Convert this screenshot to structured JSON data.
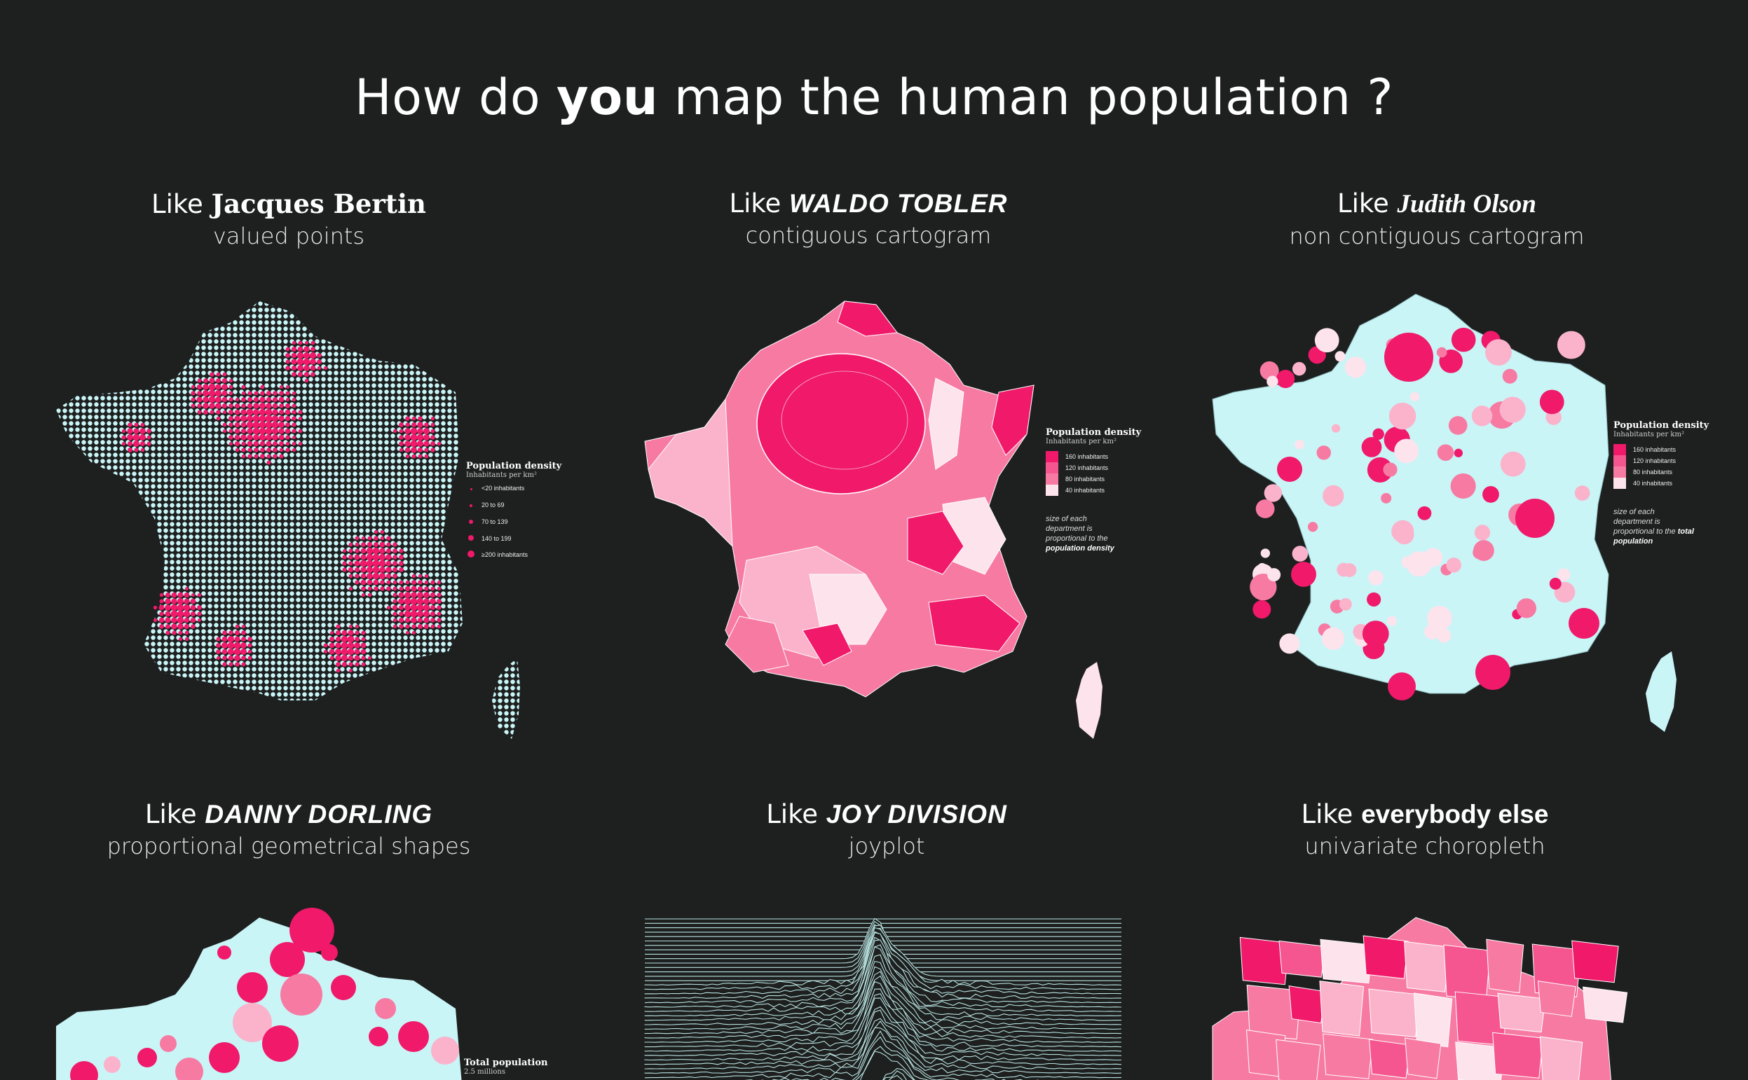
{
  "title": {
    "pre": "How do ",
    "emph": "you",
    "post": " map the human population ?"
  },
  "panels": [
    {
      "like": "Like ",
      "who": "Jacques Bertin",
      "sub": "valued points"
    },
    {
      "like": "Like ",
      "who": "Waldo Tobler",
      "sub": "contiguous cartogram"
    },
    {
      "like": "Like ",
      "who": "Judith Olson",
      "sub": "non contiguous cartogram"
    },
    {
      "like": "Like ",
      "who": "Danny Dorling",
      "sub": "proportional geometrical shapes"
    },
    {
      "like": "Like ",
      "who": "Joy Division",
      "sub": "joyplot"
    },
    {
      "like": "Like ",
      "who": "everybody else",
      "sub": "univariate choropleth"
    }
  ],
  "legend_points": {
    "title": "Population density",
    "subtitle": "Inhabitants per km²",
    "items": [
      "<20 inhabitants",
      "20 to 69",
      "70 to 139",
      "140 to 199",
      "≥200 inhabitants"
    ]
  },
  "legend_tobler": {
    "title": "Population density",
    "subtitle": "Inhabitants per km²",
    "items": [
      "160 inhabitants",
      "120 inhabitants",
      "80 inhabitants",
      "40 inhabitants"
    ],
    "note1": "size of each department is proportional to the ",
    "note2": "population density"
  },
  "legend_olson": {
    "title": "Population density",
    "subtitle": "Inhabitants per km²",
    "items": [
      "160 inhabitants",
      "120 inhabitants",
      "80 inhabitants",
      "40 inhabitants"
    ],
    "note1": "size of each department is proportional to the ",
    "note2": "total population"
  },
  "legend_dorling": {
    "title": "Total population",
    "subtitle": "2.5 millions"
  },
  "colors": {
    "background": "#1e1f1f",
    "land": "#c9f5f7",
    "dark_pink": "#f0196a",
    "mid_pink": "#f77aa3",
    "light_pink": "#fbb3cb",
    "pale_pink": "#fde3ec",
    "joy_line": "#b7e3e0"
  }
}
